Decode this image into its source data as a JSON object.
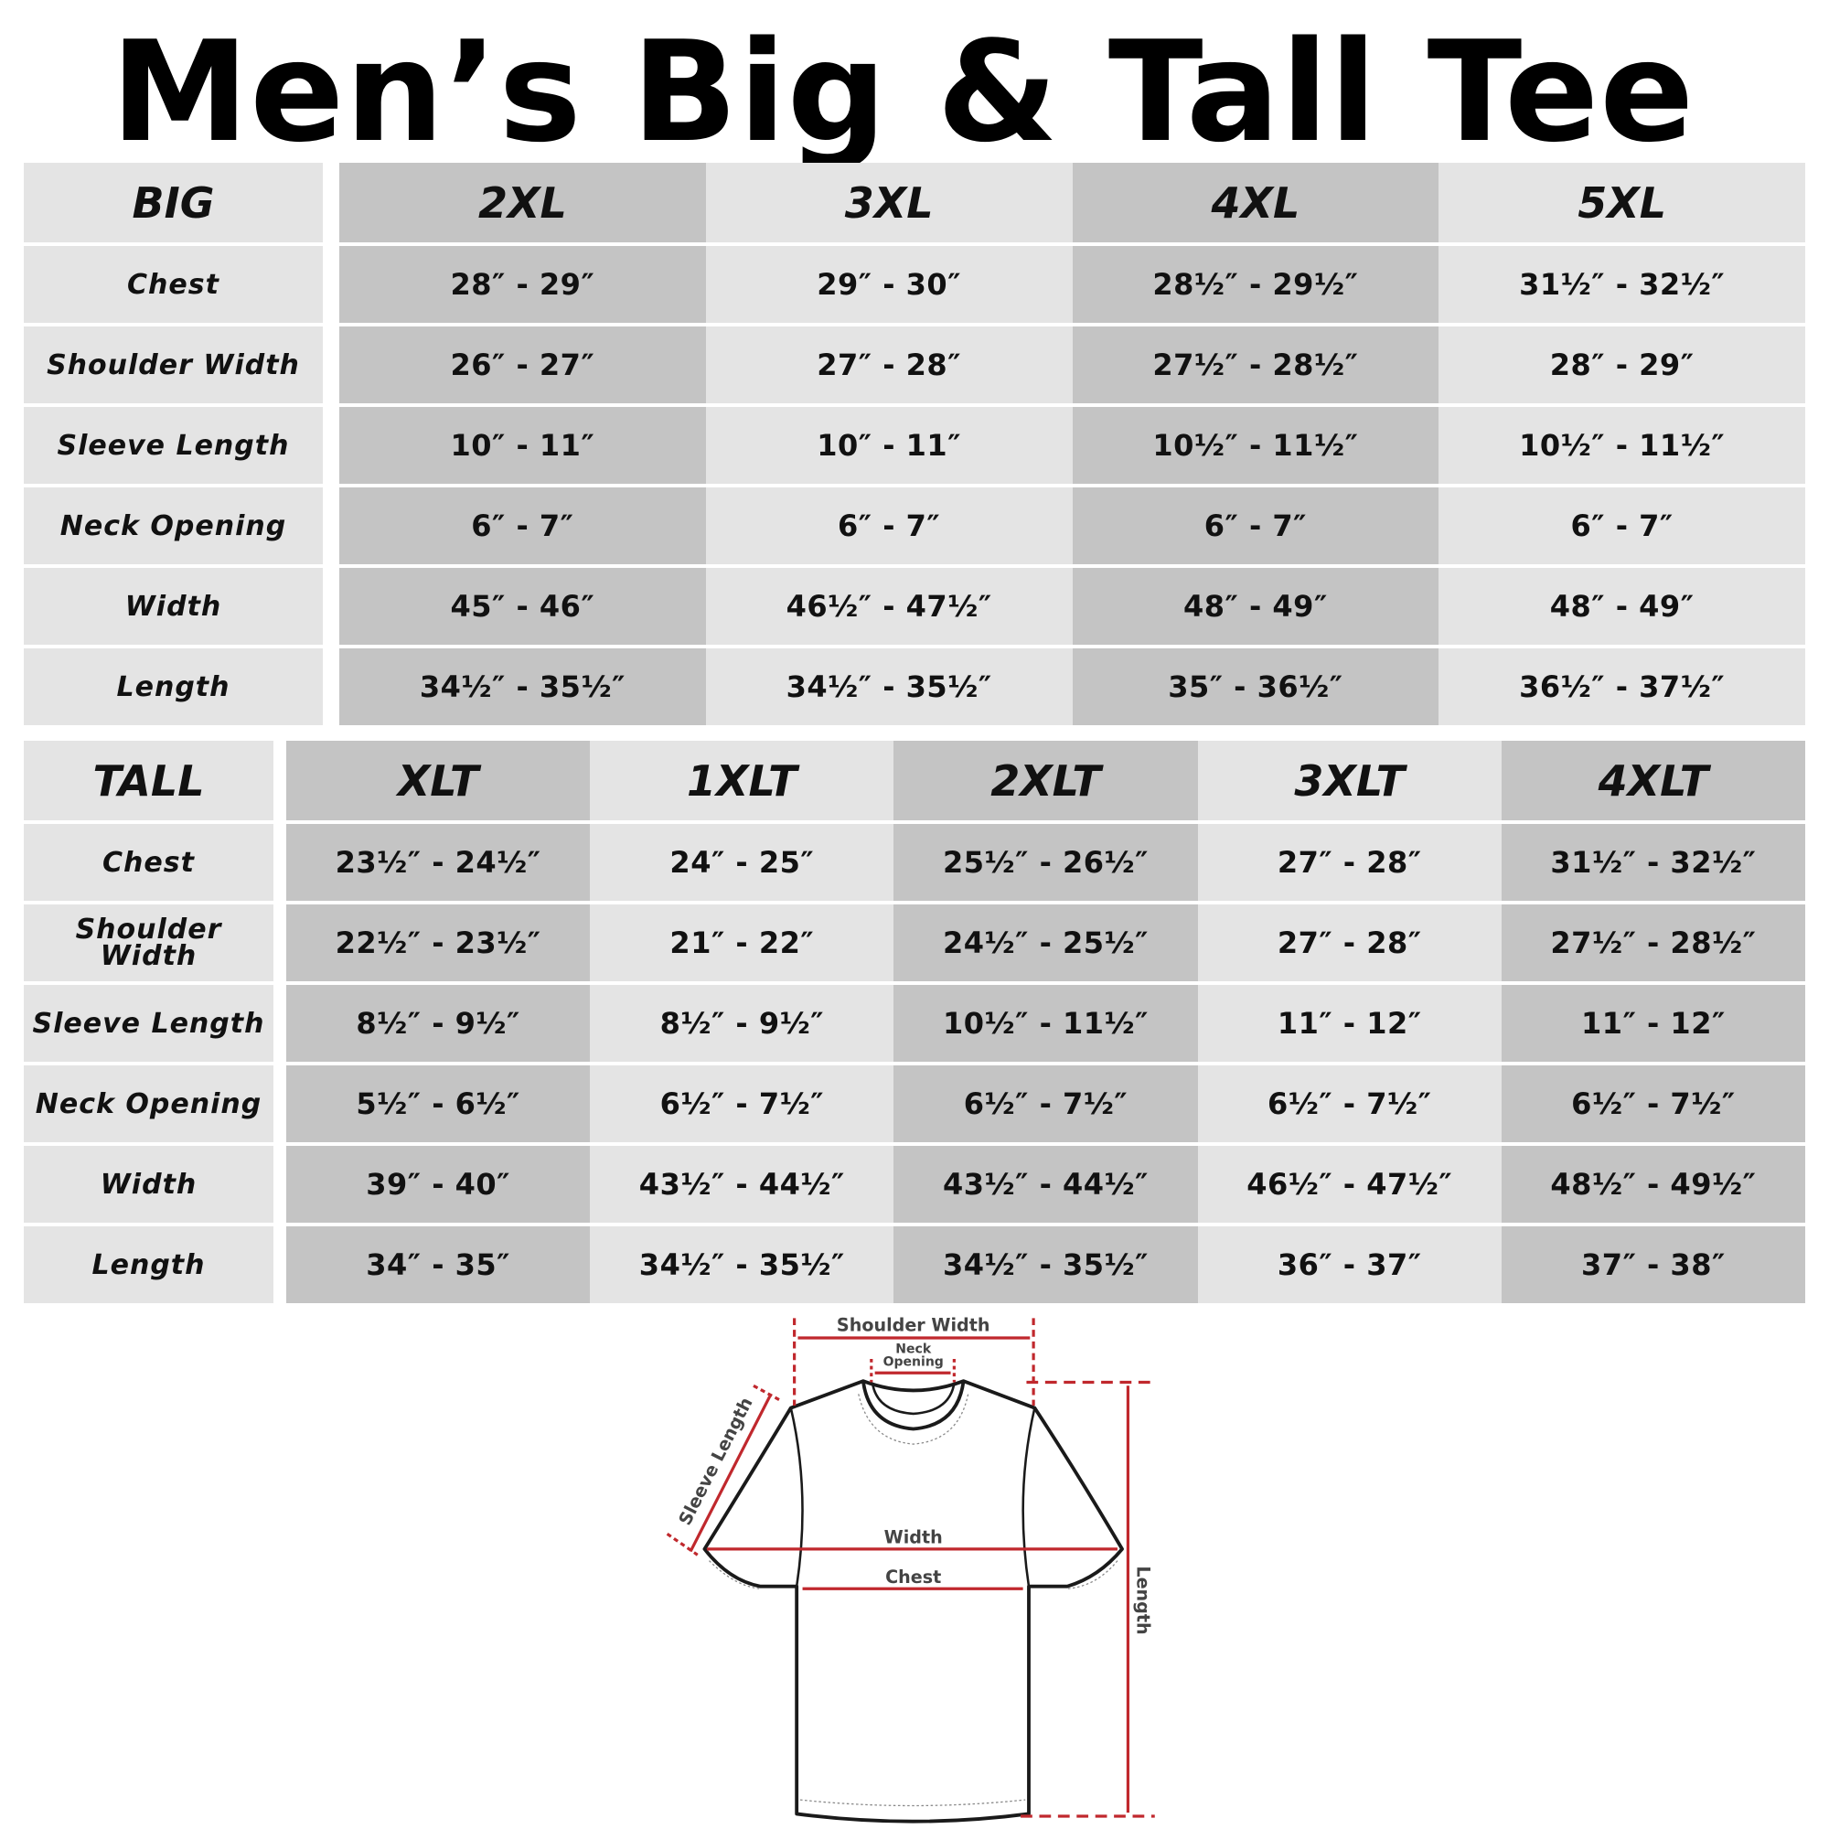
{
  "title": "Men’s Big & Tall Tee",
  "colors": {
    "label_bg": "#e4e4e4",
    "dark_col": "#c4c4c4",
    "light_col": "#e4e4e4",
    "measure_line": "#c0282d"
  },
  "big": {
    "label": "BIG",
    "sizes": [
      "2XL",
      "3XL",
      "4XL",
      "5XL"
    ],
    "rows": [
      {
        "name": "Chest",
        "values": [
          "28″ - 29″",
          "29″ - 30″",
          "28½″ - 29½″",
          "31½″ - 32½″"
        ]
      },
      {
        "name": "Shoulder Width",
        "values": [
          "26″ - 27″",
          "27″ - 28″",
          "27½″ - 28½″",
          "28″ - 29″"
        ]
      },
      {
        "name": "Sleeve Length",
        "values": [
          "10″ - 11″",
          "10″ - 11″",
          "10½″ - 11½″",
          "10½″ - 11½″"
        ]
      },
      {
        "name": "Neck Opening",
        "values": [
          "6″ - 7″",
          "6″ - 7″",
          "6″ - 7″",
          "6″ - 7″"
        ]
      },
      {
        "name": "Width",
        "values": [
          "45″ - 46″",
          "46½″ - 47½″",
          "48″ - 49″",
          "48″ - 49″"
        ]
      },
      {
        "name": "Length",
        "values": [
          "34½″ - 35½″",
          "34½″ - 35½″",
          "35″ - 36½″",
          "36½″ - 37½″"
        ]
      }
    ]
  },
  "tall": {
    "label": "TALL",
    "sizes": [
      "XLT",
      "1XLT",
      "2XLT",
      "3XLT",
      "4XLT"
    ],
    "rows": [
      {
        "name": "Chest",
        "values": [
          "23½″ - 24½″",
          "24″ - 25″",
          "25½″ - 26½″",
          "27″ - 28″",
          "31½″ - 32½″"
        ]
      },
      {
        "name": "Shoulder Width",
        "values": [
          "22½″ - 23½″",
          "21″ - 22″",
          "24½″ - 25½″",
          "27″ - 28″",
          "27½″ - 28½″"
        ]
      },
      {
        "name": "Sleeve Length",
        "values": [
          "8½″ - 9½″",
          "8½″ - 9½″",
          "10½″ - 11½″",
          "11″ - 12″",
          "11″ - 12″"
        ]
      },
      {
        "name": "Neck Opening",
        "values": [
          "5½″ - 6½″",
          "6½″ - 7½″",
          "6½″ - 7½″",
          "6½″ - 7½″",
          "6½″ - 7½″"
        ]
      },
      {
        "name": "Width",
        "values": [
          "39″ - 40″",
          "43½″ - 44½″",
          "43½″ - 44½″",
          "46½″ - 47½″",
          "48½″ - 49½″"
        ]
      },
      {
        "name": "Length",
        "values": [
          "34″ - 35″",
          "34½″ - 35½″",
          "34½″ - 35½″",
          "36″ - 37″",
          "37″ - 38″"
        ]
      }
    ]
  },
  "diagram": {
    "shoulder_width": "Shoulder Width",
    "neck_line1": "Neck",
    "neck_line2": "Opening",
    "sleeve_length": "Sleeve Length",
    "width": "Width",
    "chest": "Chest",
    "length": "Length"
  }
}
